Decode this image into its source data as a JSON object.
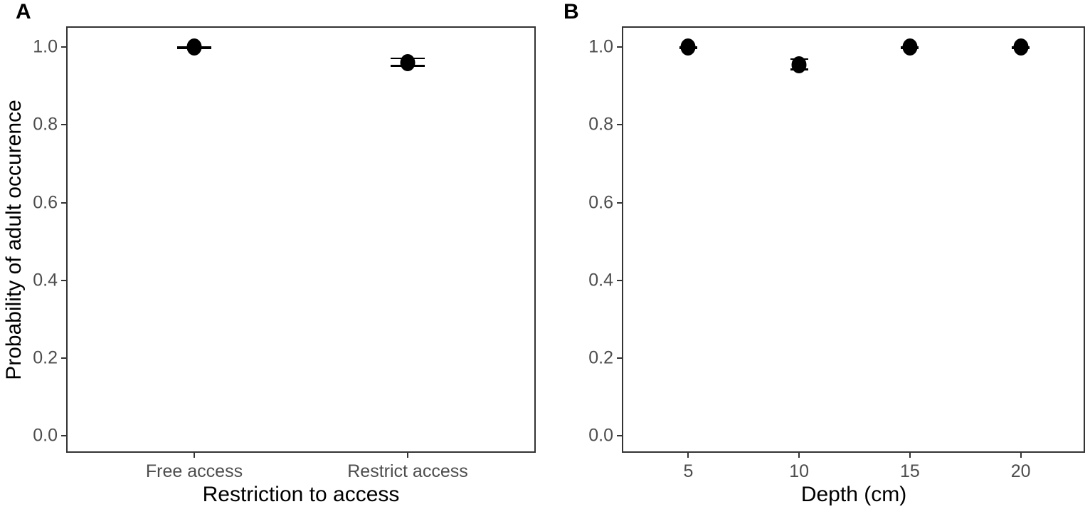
{
  "figure": {
    "background": "#ffffff",
    "panels": [
      {
        "tag": "A"
      },
      {
        "tag": "B"
      }
    ],
    "y_axis_title": "Probability of adult occurence"
  },
  "colors": {
    "point": "#000000",
    "axis_text": "#4d4d4d",
    "axis_title": "#000000",
    "panel_border": "#333333",
    "tick_mark": "#333333",
    "background": "#ffffff"
  },
  "chart_data": [
    {
      "id": "A",
      "type": "scatter",
      "title": "",
      "xlabel": "Restriction to access",
      "ylabel": "Probability of adult occurence",
      "categories": [
        "Free access",
        "Restrict access"
      ],
      "xticks": [
        {
          "x": "Free access",
          "label": "Free access"
        },
        {
          "x": "Restrict access",
          "label": "Restrict access"
        }
      ],
      "yticks": [
        {
          "value": 0.0,
          "label": "0.0"
        },
        {
          "value": 0.2,
          "label": "0.2"
        },
        {
          "value": 0.4,
          "label": "0.4"
        },
        {
          "value": 0.6,
          "label": "0.6"
        },
        {
          "value": 0.8,
          "label": "0.8"
        },
        {
          "value": 1.0,
          "label": "1.0"
        }
      ],
      "points": [
        {
          "x": "Free access",
          "y": 1.0,
          "ymin": 0.996,
          "ymax": 1.0
        },
        {
          "x": "Restrict access",
          "y": 0.96,
          "ymin": 0.951,
          "ymax": 0.971
        }
      ],
      "xlim": [
        0.4,
        2.6
      ],
      "ylim": [
        -0.043,
        1.053
      ],
      "grid": false,
      "legend_position": "none",
      "style": {
        "cap_width": 48,
        "marker_w": 21,
        "marker_h": 24
      }
    },
    {
      "id": "B",
      "type": "scatter",
      "title": "",
      "xlabel": "Depth (cm)",
      "ylabel": "",
      "categories": null,
      "xticks": [
        {
          "x": 5,
          "label": "5"
        },
        {
          "x": 10,
          "label": "10"
        },
        {
          "x": 15,
          "label": "15"
        },
        {
          "x": 20,
          "label": "20"
        }
      ],
      "yticks": [
        {
          "value": 0.0,
          "label": "0.0"
        },
        {
          "value": 0.2,
          "label": "0.2"
        },
        {
          "value": 0.4,
          "label": "0.4"
        },
        {
          "value": 0.6,
          "label": "0.6"
        },
        {
          "value": 0.8,
          "label": "0.8"
        },
        {
          "value": 1.0,
          "label": "1.0"
        }
      ],
      "points": [
        {
          "x": 5,
          "y": 1.0,
          "ymin": 0.996,
          "ymax": 1.0
        },
        {
          "x": 10,
          "y": 0.955,
          "ymin": 0.942,
          "ymax": 0.969
        },
        {
          "x": 15,
          "y": 1.0,
          "ymin": 0.996,
          "ymax": 1.0
        },
        {
          "x": 20,
          "y": 1.0,
          "ymin": 0.996,
          "ymax": 1.0
        }
      ],
      "xlim": [
        2,
        22.9
      ],
      "ylim": [
        -0.043,
        1.053
      ],
      "grid": false,
      "legend_position": "none",
      "style": {
        "cap_width": 25,
        "marker_w": 21,
        "marker_h": 24
      }
    }
  ]
}
